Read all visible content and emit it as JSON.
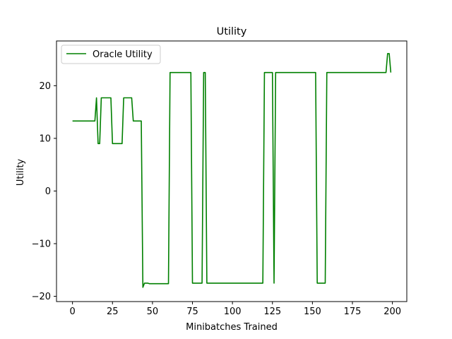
{
  "chart_data": {
    "type": "line",
    "title": "Utility",
    "xlabel": "Minibatches Trained",
    "ylabel": "Utility",
    "xlim": [
      -10,
      209
    ],
    "ylim": [
      -21,
      28.5
    ],
    "xticks": [
      0,
      25,
      50,
      75,
      100,
      125,
      150,
      175,
      200
    ],
    "yticks": [
      -20,
      -10,
      0,
      10,
      20
    ],
    "ytick_labels": [
      "−20",
      "−10",
      "0",
      "10",
      "20"
    ],
    "grid": false,
    "legend_position": "top-left",
    "series": [
      {
        "name": "Oracle Utility",
        "color": "#008000",
        "points": [
          [
            0,
            13.3
          ],
          [
            14,
            13.3
          ],
          [
            15,
            17.7
          ],
          [
            16,
            9.0
          ],
          [
            17,
            9.0
          ],
          [
            18,
            17.7
          ],
          [
            24,
            17.7
          ],
          [
            25,
            9.0
          ],
          [
            31,
            9.0
          ],
          [
            32,
            17.7
          ],
          [
            37,
            17.7
          ],
          [
            38,
            13.3
          ],
          [
            43,
            13.3
          ],
          [
            44,
            -18.3
          ],
          [
            45,
            -17.5
          ],
          [
            47,
            -17.5
          ],
          [
            48,
            -17.6
          ],
          [
            60,
            -17.6
          ],
          [
            61,
            22.5
          ],
          [
            74,
            22.5
          ],
          [
            75,
            -17.5
          ],
          [
            81,
            -17.5
          ],
          [
            82,
            22.5
          ],
          [
            83,
            22.5
          ],
          [
            84,
            -17.5
          ],
          [
            119,
            -17.5
          ],
          [
            120,
            22.5
          ],
          [
            125,
            22.5
          ],
          [
            126,
            -17.5
          ],
          [
            127,
            22.5
          ],
          [
            152,
            22.5
          ],
          [
            153,
            -17.5
          ],
          [
            158,
            -17.5
          ],
          [
            159,
            22.5
          ],
          [
            196,
            22.5
          ],
          [
            197,
            26.1
          ],
          [
            198,
            26.1
          ],
          [
            199,
            22.5
          ]
        ]
      }
    ]
  }
}
